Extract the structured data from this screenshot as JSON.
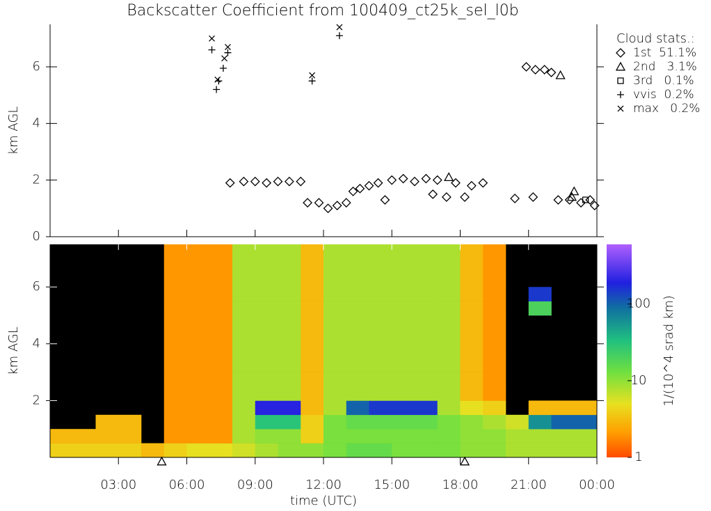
{
  "title": "Backscatter Coefficient from 100409_ct25k_sel_l0b",
  "chart_data": [
    {
      "type": "scatter",
      "ylabel": "km AGL",
      "xlim": [
        0,
        24
      ],
      "ylim": [
        0,
        7.5
      ],
      "yticks": [
        0,
        2,
        4,
        6
      ],
      "legend_title": "Cloud stats.:",
      "legend": "right",
      "series": [
        {
          "name": "1st  51.1%",
          "marker": "diamond",
          "color": "#000000",
          "x": [
            7.9,
            8.5,
            9,
            9.5,
            10,
            10.5,
            11,
            11.3,
            11.8,
            12.2,
            12.6,
            13,
            13.3,
            13.6,
            14,
            14.4,
            14.7,
            15,
            15.5,
            16,
            16.5,
            16.8,
            17,
            17.4,
            17.8,
            18.2,
            18.5,
            19,
            20.4,
            20.9,
            21.2,
            21.3,
            21.7,
            22,
            22.3,
            22.8,
            23.3,
            23.7,
            23.9
          ],
          "values": [
            1.9,
            1.95,
            1.95,
            1.9,
            1.95,
            1.95,
            1.95,
            1.2,
            1.2,
            1.0,
            1.1,
            1.2,
            1.6,
            1.7,
            1.8,
            1.9,
            1.3,
            2.0,
            2.05,
            1.95,
            2.05,
            1.5,
            2.0,
            1.4,
            1.9,
            1.4,
            1.8,
            1.9,
            1.35,
            6.0,
            1.4,
            5.9,
            5.9,
            5.8,
            1.3,
            1.3,
            1.2,
            1.3,
            1.1
          ]
        },
        {
          "name": "2nd   3.1%",
          "marker": "triangle",
          "color": "#000000",
          "x": [
            17.5,
            22.4,
            23.0,
            22.9
          ],
          "values": [
            2.1,
            5.7,
            1.6,
            1.4
          ]
        },
        {
          "name": "3rd   0.1%",
          "marker": "square",
          "color": "#000000",
          "x": [
            23.5
          ],
          "values": [
            1.3
          ]
        },
        {
          "name": "vvis  0.2%",
          "marker": "plus",
          "color": "#000000",
          "x": [
            7.1,
            7.3,
            7.4,
            7.6,
            7.8,
            11.5,
            12.7
          ],
          "values": [
            6.6,
            5.2,
            5.5,
            5.95,
            6.5,
            5.5,
            7.1
          ]
        },
        {
          "name": "max   0.2%",
          "marker": "cross",
          "color": "#000000",
          "x": [
            7.1,
            7.35,
            7.65,
            7.8,
            11.5,
            12.7
          ],
          "values": [
            7.0,
            5.55,
            6.3,
            6.7,
            5.7,
            7.4
          ]
        }
      ]
    },
    {
      "type": "heatmap",
      "ylabel": "km AGL",
      "xlabel": "time (UTC)",
      "xlim": [
        0,
        24
      ],
      "ylim": [
        0,
        7.5
      ],
      "yticks": [
        2,
        4,
        6
      ],
      "xticks": [
        {
          "value": 3,
          "label": "03:00"
        },
        {
          "value": 6,
          "label": "06:00"
        },
        {
          "value": 9,
          "label": "09:00"
        },
        {
          "value": 12,
          "label": "12:00"
        },
        {
          "value": 15,
          "label": "15:00"
        },
        {
          "value": 18,
          "label": "18:00"
        },
        {
          "value": 21,
          "label": "21:00"
        },
        {
          "value": 24,
          "label": "00:00"
        }
      ],
      "axis_markers": [
        4.9,
        18.2
      ],
      "colorbar_label": "1/(10^4 srad km)",
      "clim": [
        1,
        600
      ],
      "cticks": [
        1,
        10,
        100
      ],
      "log_color": true,
      "xbins": [
        0,
        1,
        2,
        3,
        4,
        5,
        6,
        7,
        8,
        9,
        10,
        11,
        12,
        13,
        14,
        15,
        16,
        17,
        18,
        19,
        20,
        21,
        22,
        23,
        24
      ],
      "ybins": [
        0,
        0.5,
        1,
        1.5,
        2,
        2.5,
        3,
        3.5,
        4,
        4.5,
        5,
        5.5,
        6,
        6.5,
        7,
        7.5
      ],
      "z": [
        [
          4,
          4,
          4,
          4,
          3,
          4,
          5,
          5,
          6,
          8,
          10,
          10,
          12,
          15,
          15,
          12,
          12,
          12,
          10,
          10,
          8,
          8,
          8,
          8
        ],
        [
          3,
          3,
          3,
          3,
          null,
          2,
          2,
          2,
          8,
          10,
          10,
          4,
          12,
          12,
          12,
          12,
          12,
          12,
          10,
          10,
          8,
          8,
          8,
          8
        ],
        [
          null,
          null,
          3,
          3,
          null,
          2,
          2,
          2,
          8,
          30,
          30,
          4,
          12,
          15,
          15,
          15,
          15,
          12,
          10,
          8,
          6,
          60,
          100,
          100
        ],
        [
          null,
          null,
          null,
          null,
          null,
          2,
          2,
          2,
          8,
          200,
          200,
          3,
          8,
          100,
          150,
          150,
          150,
          8,
          5,
          4,
          null,
          3,
          3,
          3
        ],
        [
          null,
          null,
          null,
          null,
          null,
          2,
          2,
          2,
          8,
          8,
          8,
          3,
          8,
          8,
          8,
          8,
          8,
          8,
          3,
          2,
          null,
          null,
          null,
          null
        ],
        [
          null,
          null,
          null,
          null,
          null,
          2,
          2,
          2,
          8,
          8,
          8,
          3,
          8,
          8,
          8,
          8,
          8,
          8,
          3,
          2,
          null,
          null,
          null,
          null
        ],
        [
          null,
          null,
          null,
          null,
          null,
          2,
          2,
          2,
          8,
          8,
          8,
          3,
          8,
          8,
          8,
          8,
          8,
          8,
          3,
          2,
          null,
          null,
          null,
          null
        ],
        [
          null,
          null,
          null,
          null,
          null,
          2,
          2,
          2,
          8,
          8,
          8,
          3,
          8,
          8,
          8,
          8,
          8,
          8,
          3,
          2,
          null,
          null,
          null,
          null
        ],
        [
          null,
          null,
          null,
          null,
          null,
          2,
          2,
          2,
          8,
          8,
          8,
          3,
          8,
          8,
          8,
          8,
          8,
          8,
          3,
          2,
          null,
          null,
          null,
          null
        ],
        [
          null,
          null,
          null,
          null,
          null,
          2,
          2,
          2,
          8,
          8,
          8,
          3,
          8,
          8,
          8,
          8,
          8,
          8,
          3,
          2,
          null,
          null,
          null,
          null
        ],
        [
          null,
          null,
          null,
          null,
          null,
          2,
          2,
          2,
          8,
          8,
          8,
          3,
          8,
          8,
          8,
          8,
          8,
          8,
          3,
          2,
          null,
          20,
          null,
          null
        ],
        [
          null,
          null,
          null,
          null,
          null,
          2,
          2,
          2,
          8,
          8,
          8,
          3,
          8,
          8,
          8,
          8,
          8,
          8,
          3,
          2,
          null,
          150,
          null,
          null
        ],
        [
          null,
          null,
          null,
          null,
          null,
          2,
          2,
          2,
          8,
          8,
          8,
          3,
          8,
          8,
          8,
          8,
          8,
          8,
          3,
          2,
          null,
          null,
          null,
          null
        ],
        [
          null,
          null,
          null,
          null,
          null,
          2,
          2,
          2,
          8,
          8,
          8,
          3,
          8,
          8,
          8,
          8,
          8,
          8,
          3,
          2,
          null,
          null,
          null,
          null
        ],
        [
          null,
          null,
          null,
          null,
          null,
          2,
          2,
          2,
          8,
          8,
          8,
          3,
          8,
          8,
          8,
          8,
          8,
          8,
          3,
          2,
          null,
          null,
          null,
          null
        ]
      ]
    }
  ]
}
